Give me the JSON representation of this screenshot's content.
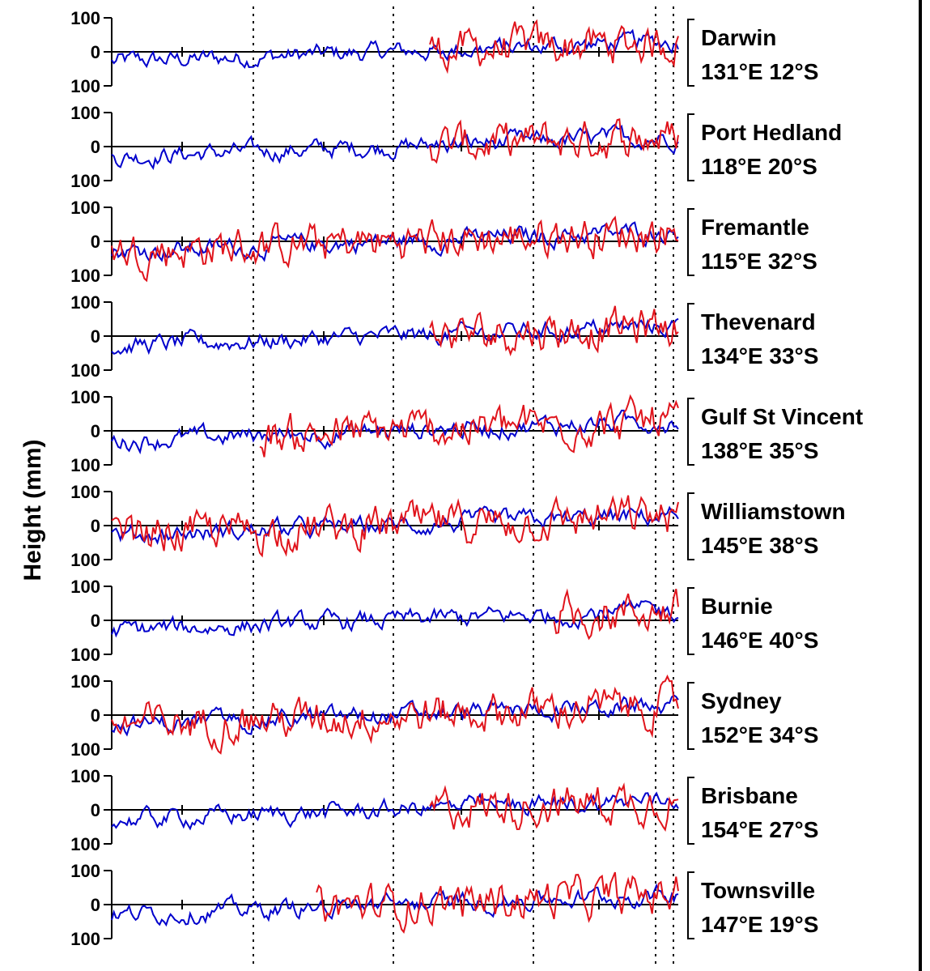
{
  "chart_data": {
    "type": "line",
    "ylabel": "Height  (mm)",
    "panel_ticks": [
      "100",
      "0",
      "100"
    ],
    "ylim": [
      -100,
      100
    ],
    "colors": {
      "series_a": "#0000cc",
      "series_b": "#e0141c",
      "axis": "#000000",
      "frame_line": "#000000"
    },
    "dashed_vertical_lines": 5,
    "panels": [
      {
        "name": "Darwin",
        "coords": "131°E   12°S",
        "red_from": 0.56
      },
      {
        "name": "Port  Hedland",
        "coords": "118°E   20°S",
        "red_from": 0.56
      },
      {
        "name": "Fremantle",
        "coords": "115°E   32°S",
        "red_from": 0.0
      },
      {
        "name": "Thevenard",
        "coords": "134°E   33°S",
        "red_from": 0.56
      },
      {
        "name": "Gulf  St  Vincent",
        "coords": "138°E   35°S",
        "red_from": 0.26
      },
      {
        "name": "Williamstown",
        "coords": "145°E   38°S",
        "red_from": 0.0
      },
      {
        "name": "Burnie",
        "coords": "146°E   40°S",
        "red_from": 0.78
      },
      {
        "name": "Sydney",
        "coords": "152°E   34°S",
        "red_from": 0.0
      },
      {
        "name": "Brisbane",
        "coords": "154°E   27°S",
        "red_from": 0.56
      },
      {
        "name": "Townsville",
        "coords": "147°E   19°S",
        "red_from": 0.36
      }
    ]
  }
}
